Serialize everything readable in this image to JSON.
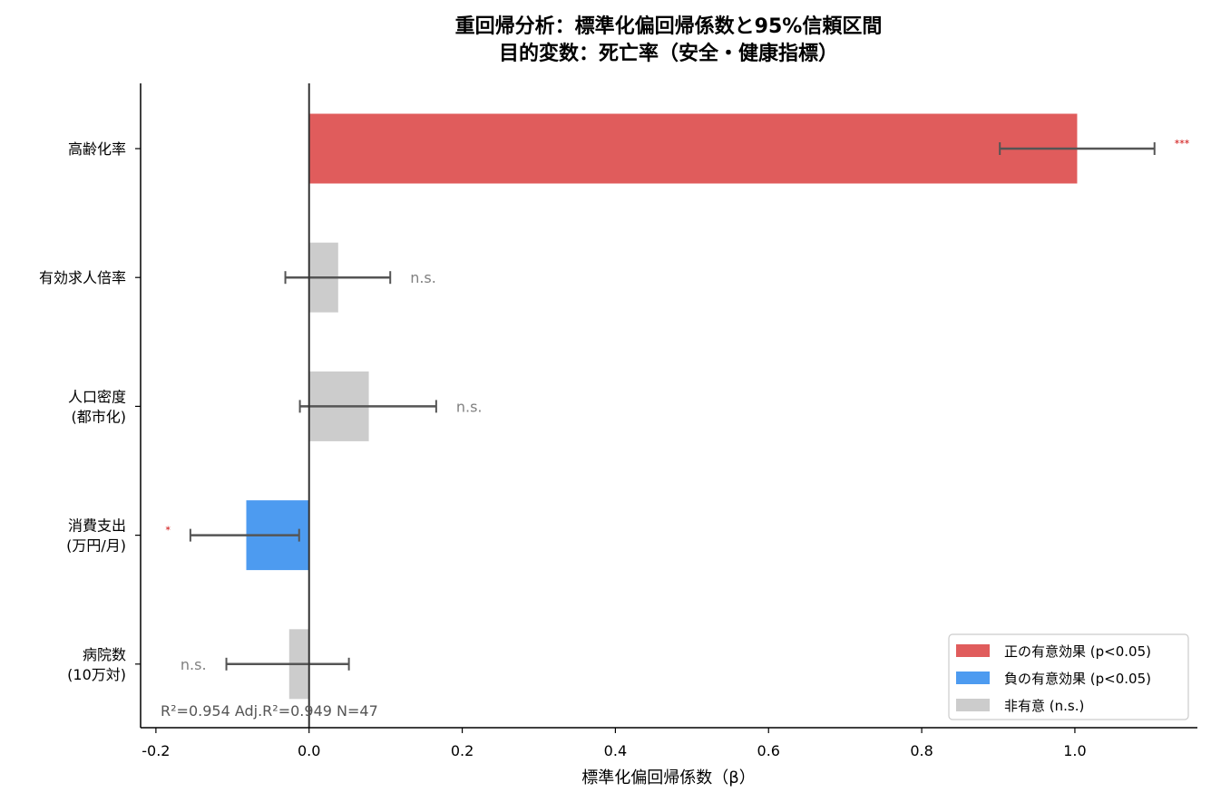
{
  "chart_data": {
    "type": "bar",
    "orientation": "horizontal",
    "title": [
      "重回帰分析：標準化偏回帰係数と95%信頼区間",
      "目的変数：死亡率（安全・健康指標）"
    ],
    "xlabel": "標準化偏回帰係数（β）",
    "ylabel": "",
    "xlim": [
      -0.22,
      1.16
    ],
    "x_ticks": [
      -0.2,
      0.0,
      0.2,
      0.4,
      0.6,
      0.8,
      1.0
    ],
    "x_tick_labels": [
      "-0.2",
      "0.0",
      "0.2",
      "0.4",
      "0.6",
      "0.8",
      "1.0"
    ],
    "grid": false,
    "legend_position": "bottom-right",
    "categories": [
      {
        "label": [
          "高齢化率"
        ],
        "value": 1.003,
        "ci": [
          0.902,
          1.104
        ],
        "group": "pos",
        "sig": "***"
      },
      {
        "label": [
          "有効求人倍率"
        ],
        "value": 0.038,
        "ci": [
          -0.031,
          0.106
        ],
        "group": "ns",
        "sig": "n.s."
      },
      {
        "label": [
          "人口密度",
          "(都市化)"
        ],
        "value": 0.078,
        "ci": [
          -0.012,
          0.166
        ],
        "group": "ns",
        "sig": "n.s."
      },
      {
        "label": [
          "消費支出",
          "(万円/月)"
        ],
        "value": -0.082,
        "ci": [
          -0.155,
          -0.013
        ],
        "group": "neg",
        "sig": "*"
      },
      {
        "label": [
          "病院数",
          "(10万対)"
        ],
        "value": -0.026,
        "ci": [
          -0.108,
          0.052
        ],
        "group": "ns",
        "sig": "n.s."
      }
    ],
    "legend": [
      {
        "group": "pos",
        "label": "正の有意効果 (p<0.05)",
        "color": "#e05c5c"
      },
      {
        "group": "neg",
        "label": "負の有意効果 (p<0.05)",
        "color": "#4d9bf0"
      },
      {
        "group": "ns",
        "label": "非有意 (n.s.)",
        "color": "#cccccc"
      }
    ],
    "stats_text": "R²=0.954  Adj.R²=0.949  N=47",
    "colors": {
      "pos": "#e05c5c",
      "neg": "#4d9bf0",
      "ns": "#cccccc",
      "errorbar": "#555555",
      "zero_line": "#333333"
    }
  }
}
